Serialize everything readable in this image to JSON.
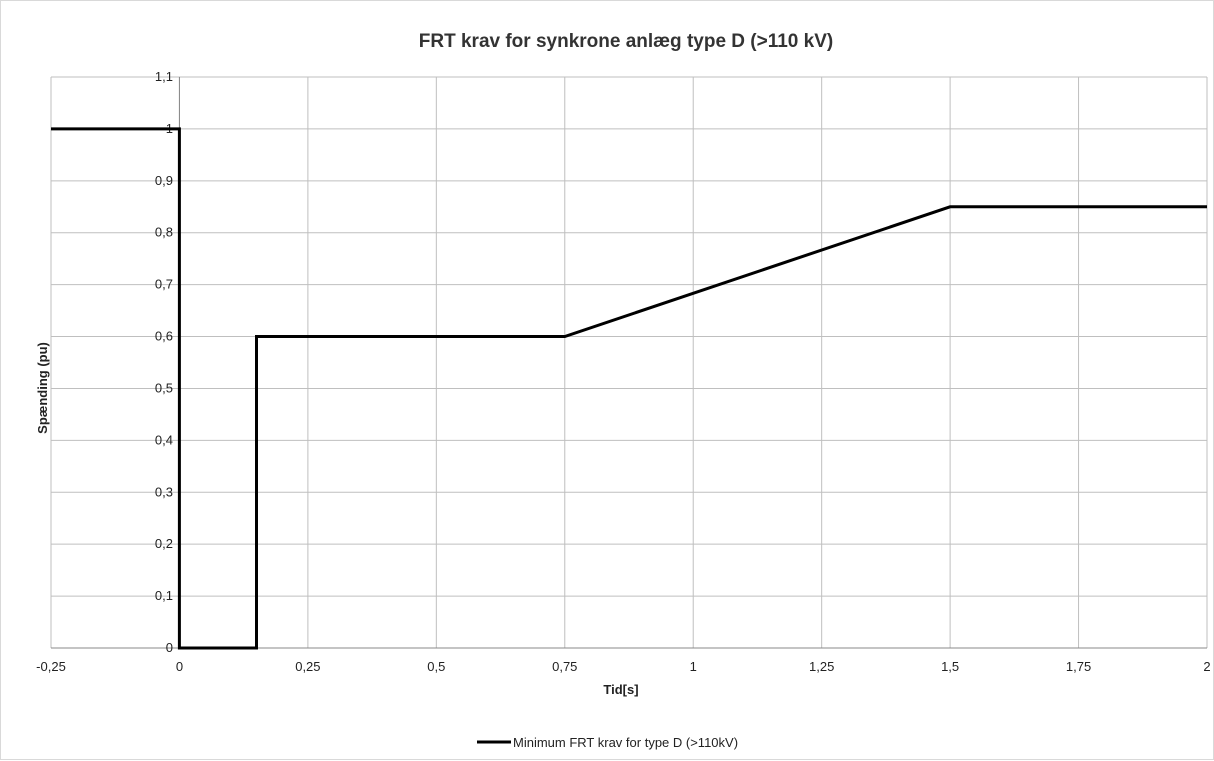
{
  "chart_data": {
    "type": "line",
    "title": "FRT krav for synkrone anlæg type D (>110 kV)",
    "xlabel": "Tid[s]",
    "ylabel": "Spænding (pu)",
    "xlim": [
      -0.25,
      2
    ],
    "ylim": [
      0,
      1.1
    ],
    "x_ticks": [
      -0.25,
      0,
      0.25,
      0.5,
      0.75,
      1,
      1.25,
      1.5,
      1.75,
      2
    ],
    "x_tick_labels": [
      "-0,25",
      "0",
      "0,25",
      "0,5",
      "0,75",
      "1",
      "1,25",
      "1,5",
      "1,75",
      "2"
    ],
    "y_ticks": [
      0,
      0.1,
      0.2,
      0.3,
      0.4,
      0.5,
      0.6,
      0.7,
      0.8,
      0.9,
      1,
      1.1
    ],
    "y_tick_labels": [
      "0",
      "0,1",
      "0,2",
      "0,3",
      "0,4",
      "0,5",
      "0,6",
      "0,7",
      "0,8",
      "0,9",
      "1",
      "1,1"
    ],
    "grid": true,
    "legend_position": "bottom",
    "series": [
      {
        "name": "Minimum FRT krav for type D (>110kV)",
        "color": "#000000",
        "points": [
          [
            -0.25,
            1
          ],
          [
            0,
            1
          ],
          [
            0,
            0
          ],
          [
            0.15,
            0
          ],
          [
            0.15,
            0.6
          ],
          [
            0.75,
            0.6
          ],
          [
            1.5,
            0.85
          ],
          [
            2,
            0.85
          ]
        ]
      }
    ]
  }
}
